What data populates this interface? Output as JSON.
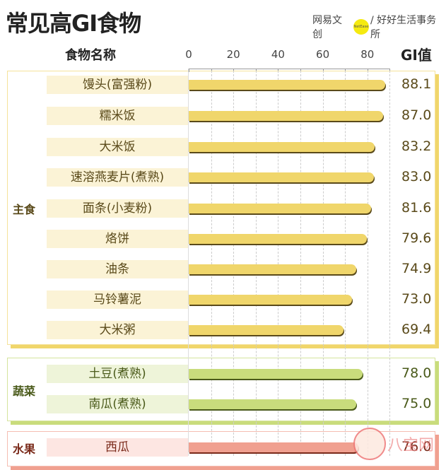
{
  "title": "常见高GI食物",
  "logo": {
    "left": "网易文创",
    "dot": "NetEase",
    "right": "/ 好好生活事务所"
  },
  "header": {
    "name_col": "食物名称",
    "gi_col": "GI值"
  },
  "axis": {
    "ticks": [
      "0",
      "20",
      "40",
      "60",
      "80"
    ]
  },
  "groups": [
    {
      "label": "主食",
      "color": "#f0d66b",
      "border": "#f5e29a",
      "bg": "#fbf3d6",
      "text": "#5a4a1a"
    },
    {
      "label": "蔬菜",
      "color": "#c9dc7c",
      "border": "#d5e49d",
      "bg": "#eef4d9",
      "text": "#4a5a1a"
    },
    {
      "label": "水果",
      "color": "#f0a090",
      "border": "#f5bdb2",
      "bg": "#fde6e2",
      "text": "#7a2a1a"
    }
  ],
  "chart_data": {
    "type": "bar",
    "title": "常见高GI食物",
    "xlabel": "GI值",
    "ylabel": "食物名称",
    "xlim": [
      0,
      90
    ],
    "x_ticks": [
      0,
      20,
      40,
      60,
      80
    ],
    "grid": true,
    "categories": [
      "馒头(富强粉)",
      "糯米饭",
      "大米饭",
      "速溶燕麦片(煮熟)",
      "面条(小麦粉)",
      "烙饼",
      "油条",
      "马铃薯泥",
      "大米粥",
      "土豆(煮熟)",
      "南瓜(煮熟)",
      "西瓜"
    ],
    "groups": [
      "主食",
      "主食",
      "主食",
      "主食",
      "主食",
      "主食",
      "主食",
      "主食",
      "主食",
      "蔬菜",
      "蔬菜",
      "水果"
    ],
    "values": [
      88.1,
      87.0,
      83.2,
      83.0,
      81.6,
      79.6,
      74.9,
      73.0,
      69.4,
      78.0,
      75.0,
      76.0
    ]
  },
  "values_text": [
    "88.1",
    "87.0",
    "83.2",
    "83.0",
    "81.6",
    "79.6",
    "74.9",
    "73.0",
    "69.4",
    "78.0",
    "75.0",
    "76.0"
  ],
  "watermark": "八宝网"
}
